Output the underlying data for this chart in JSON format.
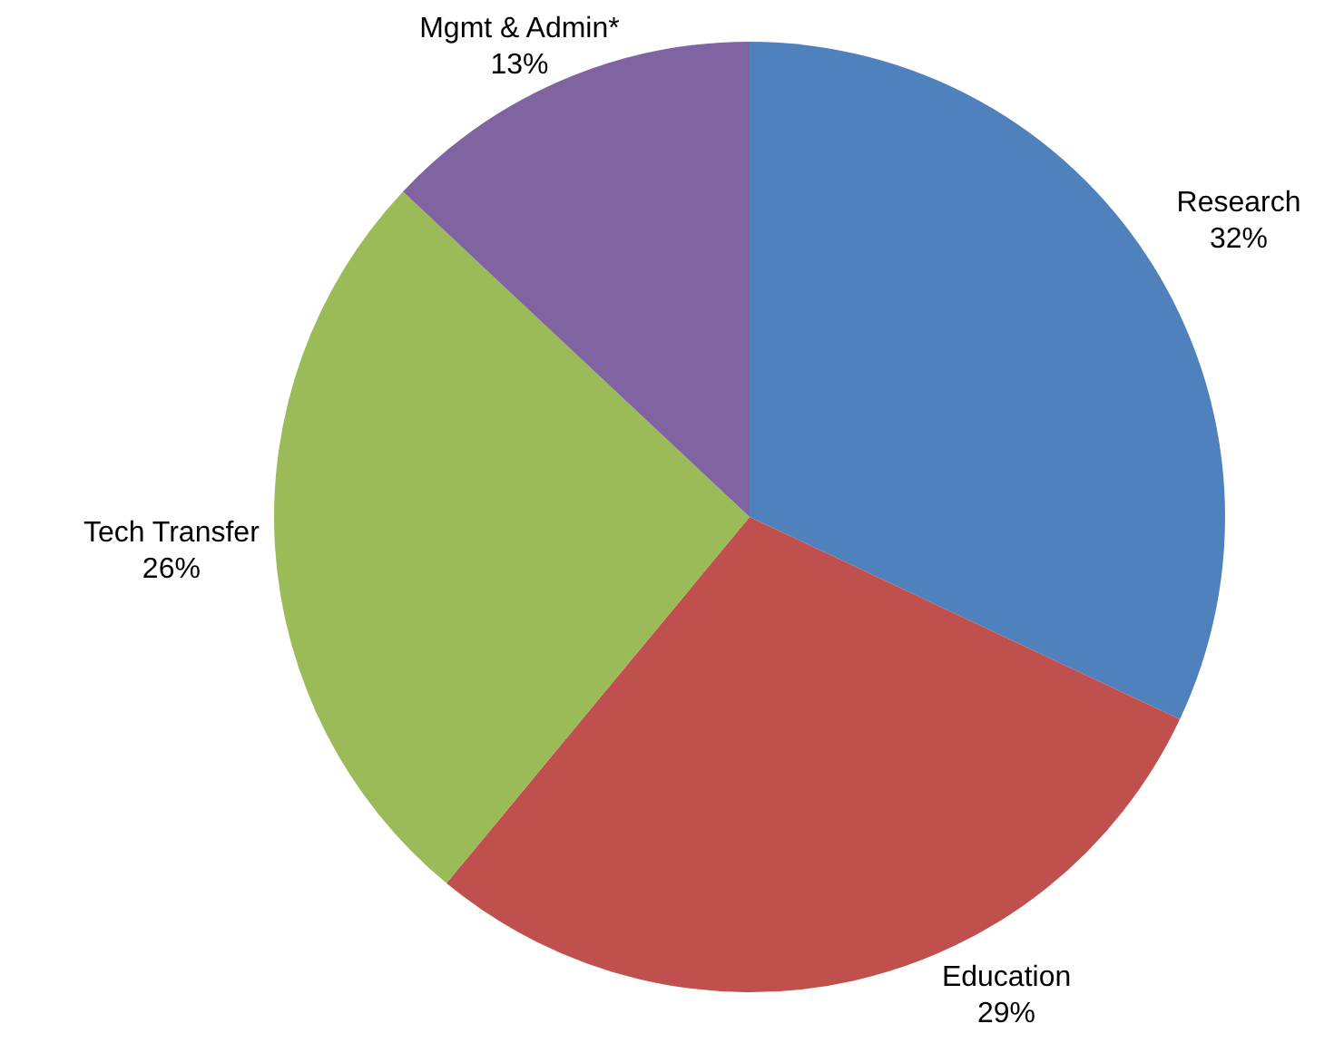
{
  "chart_data": {
    "type": "pie",
    "categories": [
      "Research",
      "Education",
      "Tech Transfer",
      "Mgmt & Admin*"
    ],
    "values": [
      32,
      29,
      26,
      13
    ],
    "value_labels": [
      "32%",
      "29%",
      "26%",
      "13%"
    ],
    "colors": [
      "#4f81bd",
      "#c0504d",
      "#9bbb59",
      "#8064a2"
    ],
    "legend": false
  }
}
